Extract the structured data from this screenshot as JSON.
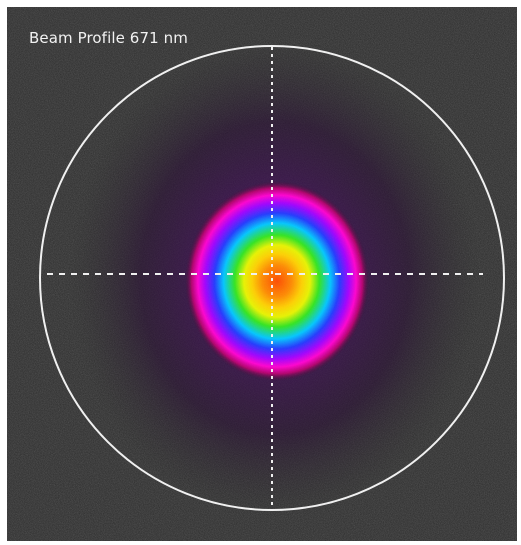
{
  "viewer": {
    "title": "Beam Profile 671 nm"
  },
  "icons": {
    "aperture": "aperture-circle-icon",
    "crosshair": "crosshair-icon"
  },
  "colors": {
    "frame_border": "#ffffff",
    "background_noise": "#2a2a2a",
    "halo": "#5a1e78",
    "magenta_ring": "#ff00ff",
    "blue_ring": "#2a3cff",
    "cyan_ring": "#00d0ff",
    "green_ring": "#20e020",
    "yellow_ring": "#f0f000",
    "core": "#ff5a00",
    "overlay": "#f0f0f0"
  }
}
